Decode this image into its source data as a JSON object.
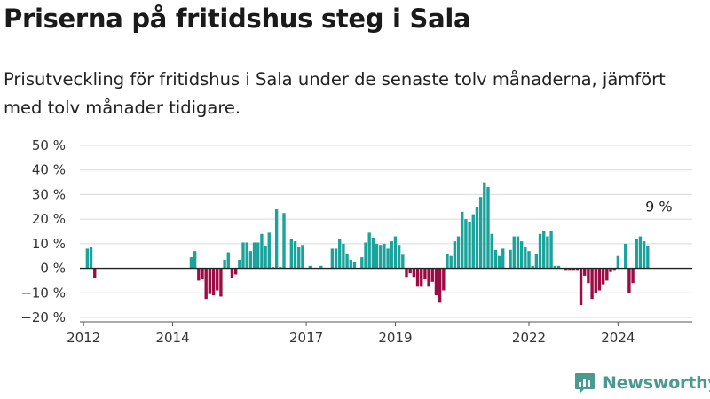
{
  "title": "Priserna på fritidshus steg i Sala",
  "subtitle": "Prisutveckling för fritidshus i Sala under de senaste tolv månaderna, jämfört med tolv månader tidigare.",
  "brand": {
    "name": "Newsworthy",
    "color": "#4a9a90"
  },
  "chart_data": {
    "type": "bar",
    "title": "Priserna på fritidshus steg i Sala",
    "subtitle": "Prisutveckling för fritidshus i Sala under de senaste tolv månaderna, jämfört med tolv månader tidigare.",
    "xlabel": "",
    "ylabel": "",
    "x_start": "2011-12",
    "x_end": "2025-09",
    "ylim": [
      -20,
      50
    ],
    "yticks": [
      -20,
      -10,
      0,
      10,
      20,
      30,
      40,
      50
    ],
    "ytick_labels": [
      "−20 %",
      "−10 %",
      "0 %",
      "10 %",
      "20 %",
      "30 %",
      "40 %",
      "50 %"
    ],
    "xticks": [
      {
        "date": "2012-01",
        "label": "2012"
      },
      {
        "date": "2014-01",
        "label": "2014"
      },
      {
        "date": "2017-01",
        "label": "2017"
      },
      {
        "date": "2019-01",
        "label": "2019"
      },
      {
        "date": "2022-01",
        "label": "2022"
      },
      {
        "date": "2024-01",
        "label": "2024"
      }
    ],
    "grid": true,
    "positive_color": "#1aa39a",
    "negative_color": "#9c0c44",
    "annotation": {
      "date": "2024-12",
      "text": "9 %"
    },
    "series": [
      {
        "values": [
          [
            "2012-02",
            8
          ],
          [
            "2012-03",
            8.5
          ],
          [
            "2012-04",
            -4
          ],
          [
            "2014-06",
            4.5
          ],
          [
            "2014-07",
            7
          ],
          [
            "2014-08",
            -5
          ],
          [
            "2014-09",
            -4.5
          ],
          [
            "2014-10",
            -12.5
          ],
          [
            "2014-11",
            -10.5
          ],
          [
            "2014-12",
            -11
          ],
          [
            "2015-01",
            -9
          ],
          [
            "2015-02",
            -11.5
          ],
          [
            "2015-03",
            3.5
          ],
          [
            "2015-04",
            6.5
          ],
          [
            "2015-05",
            -4
          ],
          [
            "2015-06",
            -2.5
          ],
          [
            "2015-07",
            3.5
          ],
          [
            "2015-08",
            10.5
          ],
          [
            "2015-09",
            10.5
          ],
          [
            "2015-10",
            7
          ],
          [
            "2015-11",
            10.5
          ],
          [
            "2015-12",
            10.5
          ],
          [
            "2016-01",
            14
          ],
          [
            "2016-02",
            9
          ],
          [
            "2016-03",
            14.5
          ],
          [
            "2016-04",
            0.5
          ],
          [
            "2016-05",
            24
          ],
          [
            "2016-06",
            0.5
          ],
          [
            "2016-07",
            22.5
          ],
          [
            "2016-09",
            12
          ],
          [
            "2016-10",
            11
          ],
          [
            "2016-11",
            8.5
          ],
          [
            "2016-12",
            9.5
          ],
          [
            "2017-02",
            1
          ],
          [
            "2017-05",
            1
          ],
          [
            "2017-08",
            8
          ],
          [
            "2017-09",
            8
          ],
          [
            "2017-10",
            12
          ],
          [
            "2017-11",
            10
          ],
          [
            "2017-12",
            6
          ],
          [
            "2018-01",
            3.5
          ],
          [
            "2018-02",
            2.5
          ],
          [
            "2018-04",
            4.5
          ],
          [
            "2018-05",
            10.5
          ],
          [
            "2018-06",
            14.5
          ],
          [
            "2018-07",
            12.5
          ],
          [
            "2018-08",
            10
          ],
          [
            "2018-09",
            9.5
          ],
          [
            "2018-10",
            10
          ],
          [
            "2018-11",
            8
          ],
          [
            "2018-12",
            11
          ],
          [
            "2019-01",
            13
          ],
          [
            "2019-02",
            9.5
          ],
          [
            "2019-03",
            5.5
          ],
          [
            "2019-04",
            -3.5
          ],
          [
            "2019-05",
            -2
          ],
          [
            "2019-06",
            -3.5
          ],
          [
            "2019-07",
            -7.5
          ],
          [
            "2019-08",
            -7.5
          ],
          [
            "2019-09",
            -4.5
          ],
          [
            "2019-10",
            -7.5
          ],
          [
            "2019-11",
            -5.5
          ],
          [
            "2019-12",
            -11
          ],
          [
            "2020-01",
            -14
          ],
          [
            "2020-02",
            -9
          ],
          [
            "2020-03",
            6
          ],
          [
            "2020-04",
            5
          ],
          [
            "2020-05",
            11
          ],
          [
            "2020-06",
            13
          ],
          [
            "2020-07",
            23
          ],
          [
            "2020-08",
            20
          ],
          [
            "2020-09",
            19
          ],
          [
            "2020-10",
            22
          ],
          [
            "2020-11",
            25
          ],
          [
            "2020-12",
            29
          ],
          [
            "2021-01",
            35
          ],
          [
            "2021-02",
            33
          ],
          [
            "2021-03",
            14
          ],
          [
            "2021-04",
            7.5
          ],
          [
            "2021-05",
            5
          ],
          [
            "2021-06",
            8
          ],
          [
            "2021-08",
            7.5
          ],
          [
            "2021-09",
            13
          ],
          [
            "2021-10",
            13
          ],
          [
            "2021-11",
            11
          ],
          [
            "2021-12",
            8.5
          ],
          [
            "2022-01",
            7
          ],
          [
            "2022-02",
            1
          ],
          [
            "2022-03",
            6
          ],
          [
            "2022-04",
            14
          ],
          [
            "2022-05",
            15
          ],
          [
            "2022-06",
            13
          ],
          [
            "2022-07",
            15
          ],
          [
            "2022-08",
            1
          ],
          [
            "2022-09",
            1
          ],
          [
            "2022-11",
            -1
          ],
          [
            "2022-12",
            -1
          ],
          [
            "2023-01",
            -1
          ],
          [
            "2023-02",
            -1
          ],
          [
            "2023-03",
            -15
          ],
          [
            "2023-04",
            -3
          ],
          [
            "2023-05",
            -6
          ],
          [
            "2023-06",
            -12.5
          ],
          [
            "2023-07",
            -10
          ],
          [
            "2023-08",
            -9
          ],
          [
            "2023-09",
            -6.5
          ],
          [
            "2023-10",
            -5
          ],
          [
            "2023-11",
            -1.5
          ],
          [
            "2023-12",
            -1
          ],
          [
            "2024-01",
            5
          ],
          [
            "2024-03",
            10
          ],
          [
            "2024-04",
            -10
          ],
          [
            "2024-05",
            -6
          ],
          [
            "2024-06",
            12
          ],
          [
            "2024-07",
            13
          ],
          [
            "2024-08",
            11
          ],
          [
            "2024-09",
            9
          ]
        ]
      }
    ]
  }
}
